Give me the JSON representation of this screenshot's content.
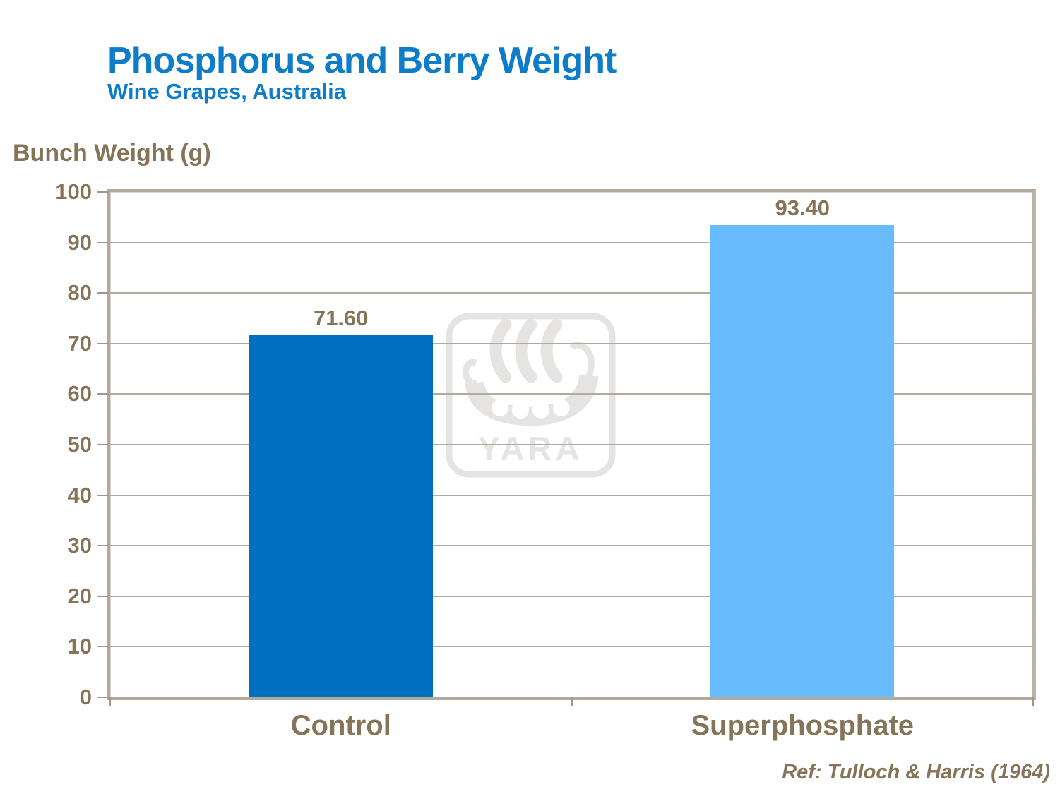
{
  "header": {
    "title": "Phosphorus and Berry Weight",
    "subtitle": "Wine Grapes, Australia"
  },
  "chart_data": {
    "type": "bar",
    "title": "Phosphorus and Berry Weight",
    "subtitle": "Wine Grapes, Australia",
    "ylabel": "Bunch Weight (g)",
    "xlabel": "",
    "categories": [
      "Control",
      "Superphosphate"
    ],
    "values": [
      71.6,
      93.4
    ],
    "value_labels": [
      "71.60",
      "93.40"
    ],
    "ylim": [
      0,
      100
    ],
    "ytick_step": 10,
    "grid": true,
    "legend": false,
    "bar_colors": [
      "#0070C1",
      "#68BCFD"
    ]
  },
  "watermark": {
    "name": "yara-logo",
    "text": "YARA"
  },
  "footer": {
    "reference": "Ref: Tulloch & Harris (1964)"
  },
  "colors": {
    "title_blue": "#0D7DC9",
    "text_taupe": "#857458",
    "gridline": "#B4A99C",
    "axis_border": "#B3A89C",
    "axis_tick": "#A1968A",
    "bar_control": "#0070C1",
    "bar_superphosphate": "#68BCFD",
    "watermark_gray": "#E5E4E2"
  }
}
